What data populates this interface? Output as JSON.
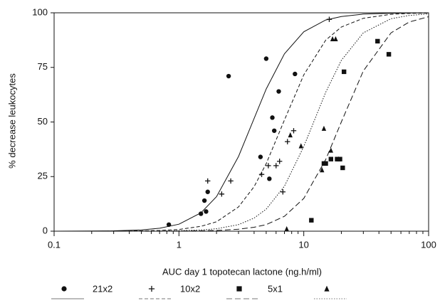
{
  "chart_data": {
    "type": "scatter",
    "x_label": "AUC day 1 topotecan lactone (ng.h/ml)",
    "y_label": "% decrease leukocytes",
    "log_x": true,
    "xlim": [
      0.1,
      100
    ],
    "xticks": [
      0.1,
      1,
      10,
      100
    ],
    "xminor": [
      0.2,
      0.3,
      0.4,
      0.5,
      0.6,
      0.7,
      0.8,
      0.9,
      2,
      3,
      4,
      5,
      6,
      7,
      8,
      9,
      20,
      30,
      40,
      50,
      60,
      70,
      80,
      90
    ],
    "ylim": [
      0,
      100
    ],
    "yticks": [
      0,
      25,
      50,
      75,
      100
    ],
    "color": "#111111",
    "fit_x": [
      0.1,
      0.2,
      0.3,
      0.5,
      0.7,
      1,
      1.5,
      2,
      3,
      4,
      5,
      7,
      10,
      15,
      20,
      30,
      50,
      70,
      100
    ],
    "series": [
      {
        "name": "21x2",
        "marker": "circle",
        "line_style": "solid",
        "x": [
          0.83,
          1.5,
          1.6,
          1.65,
          1.7,
          2.5,
          4.5,
          5,
          5.3,
          5.6,
          5.8,
          6.3,
          8.5
        ],
        "values": [
          3,
          8,
          14,
          9,
          18,
          71,
          34,
          79,
          24,
          52,
          46,
          64,
          72
        ],
        "fit": [
          0.01,
          0.06,
          0.16,
          0.59,
          1.35,
          3.2,
          8.4,
          15.8,
          34.2,
          51.6,
          65.1,
          81.2,
          91.3,
          96.7,
          98.3,
          99.4,
          99.8,
          99.9,
          100
        ]
      },
      {
        "name": "10x2",
        "marker": "plus",
        "line_style": "dashed",
        "x": [
          1.7,
          2.2,
          2.6,
          4.6,
          5.2,
          6,
          6.4,
          6.8,
          7.4,
          8.3,
          16
        ],
        "values": [
          23,
          17,
          23,
          26,
          30,
          30,
          32,
          18,
          41,
          46,
          97
        ],
        "fit": [
          0.003,
          0.014,
          0.04,
          0.14,
          0.33,
          0.79,
          2.2,
          4.3,
          11.1,
          20.4,
          30.9,
          50.9,
          71.6,
          87.5,
          93.5,
          97.5,
          99.3,
          99.7,
          99.9
        ]
      },
      {
        "name": "5x1",
        "marker": "square",
        "line_style": "longdash",
        "x": [
          11.5,
          14.5,
          15,
          16.5,
          18.5,
          19.5,
          20.5,
          21,
          39,
          48
        ],
        "values": [
          5,
          31,
          31,
          33,
          33,
          33,
          29,
          73,
          87,
          81
        ],
        "fit": [
          0,
          0,
          0,
          0.01,
          0.02,
          0.06,
          0.15,
          0.32,
          0.87,
          1.8,
          3,
          6.8,
          15,
          32.8,
          50,
          73.4,
          90.8,
          95.8,
          98.2
        ]
      },
      {
        "marker": "triangle",
        "line_style": "dotted",
        "x": [
          7.3,
          7.8,
          9.5,
          14,
          14.5,
          16.5,
          17,
          18,
          19
        ],
        "values": [
          1,
          44,
          39,
          28,
          47,
          37,
          88,
          88,
          33
        ],
        "fit": [
          0,
          0.004,
          0.01,
          0.04,
          0.08,
          0.2,
          0.55,
          1.1,
          3,
          6,
          10.1,
          20.6,
          38.8,
          63.6,
          78.2,
          90.8,
          97.3,
          98.8,
          99.5
        ]
      }
    ]
  }
}
